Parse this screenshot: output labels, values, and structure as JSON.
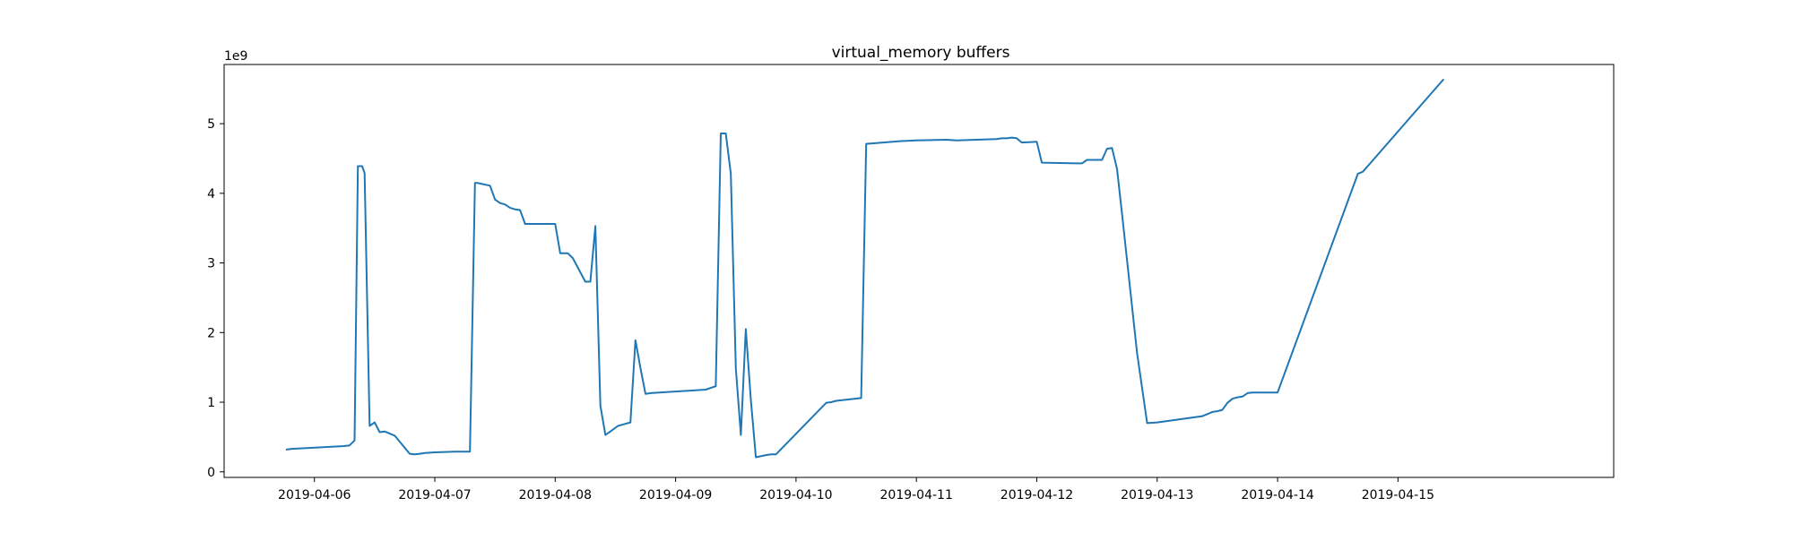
{
  "chart_data": {
    "type": "line",
    "title": "virtual_memory buffers",
    "xlabel": "",
    "ylabel": "",
    "y_offset_label": "1e9",
    "xlim": [
      "2019-04-05 06:00",
      "2019-04-16 19:00"
    ],
    "ylim": [
      -0.08,
      5.85
    ],
    "grid": false,
    "x_ticks": [
      "2019-04-06",
      "2019-04-07",
      "2019-04-08",
      "2019-04-09",
      "2019-04-10",
      "2019-04-11",
      "2019-04-12",
      "2019-04-13",
      "2019-04-14",
      "2019-04-15"
    ],
    "y_ticks": [
      0,
      1,
      2,
      3,
      4,
      5
    ],
    "series": [
      {
        "color": "#1f77b4",
        "x": [
          "2019-04-05 18:30",
          "2019-04-05 19:30",
          "2019-04-06 06:00",
          "2019-04-06 07:00",
          "2019-04-06 08:00",
          "2019-04-06 08:40",
          "2019-04-06 09:30",
          "2019-04-06 10:00",
          "2019-04-06 11:00",
          "2019-04-06 12:00",
          "2019-04-06 13:00",
          "2019-04-06 14:00",
          "2019-04-06 16:00",
          "2019-04-06 19:00",
          "2019-04-06 20:00",
          "2019-04-06 21:00",
          "2019-04-06 22:00",
          "2019-04-07 00:00",
          "2019-04-07 04:00",
          "2019-04-07 07:00",
          "2019-04-07 08:00",
          "2019-04-07 08:30",
          "2019-04-07 09:00",
          "2019-04-07 11:00",
          "2019-04-07 12:00",
          "2019-04-07 13:00",
          "2019-04-07 14:00",
          "2019-04-07 15:00",
          "2019-04-07 16:00",
          "2019-04-07 17:00",
          "2019-04-07 18:00",
          "2019-04-07 20:00",
          "2019-04-08 00:00",
          "2019-04-08 01:00",
          "2019-04-08 02:30",
          "2019-04-08 03:30",
          "2019-04-08 06:00",
          "2019-04-08 07:00",
          "2019-04-08 08:00",
          "2019-04-08 09:00",
          "2019-04-08 10:00",
          "2019-04-08 11:00",
          "2019-04-08 12:30",
          "2019-04-08 13:30",
          "2019-04-08 15:00",
          "2019-04-08 16:00",
          "2019-04-08 17:00",
          "2019-04-08 18:00",
          "2019-04-08 19:00",
          "2019-04-09 06:00",
          "2019-04-09 08:00",
          "2019-04-09 09:00",
          "2019-04-09 10:00",
          "2019-04-09 11:00",
          "2019-04-09 12:00",
          "2019-04-09 13:00",
          "2019-04-09 14:00",
          "2019-04-09 15:00",
          "2019-04-09 16:00",
          "2019-04-09 18:00",
          "2019-04-09 19:00",
          "2019-04-09 20:00",
          "2019-04-10 06:00",
          "2019-04-10 07:00",
          "2019-04-10 08:00",
          "2019-04-10 13:00",
          "2019-04-10 14:00",
          "2019-04-10 21:00",
          "2019-04-11 00:00",
          "2019-04-11 06:00",
          "2019-04-11 08:00",
          "2019-04-11 16:00",
          "2019-04-11 17:00",
          "2019-04-11 18:00",
          "2019-04-11 19:00",
          "2019-04-11 20:00",
          "2019-04-11 21:00",
          "2019-04-12 00:00",
          "2019-04-12 01:00",
          "2019-04-12 08:00",
          "2019-04-12 09:00",
          "2019-04-12 10:00",
          "2019-04-12 11:00",
          "2019-04-12 12:00",
          "2019-04-12 13:00",
          "2019-04-12 14:00",
          "2019-04-12 15:00",
          "2019-04-12 16:00",
          "2019-04-12 17:00",
          "2019-04-12 20:00",
          "2019-04-12 22:00",
          "2019-04-13 00:00",
          "2019-04-13 09:00",
          "2019-04-13 10:00",
          "2019-04-13 11:00",
          "2019-04-13 12:00",
          "2019-04-13 13:00",
          "2019-04-13 14:00",
          "2019-04-13 15:00",
          "2019-04-13 16:00",
          "2019-04-13 17:00",
          "2019-04-13 18:00",
          "2019-04-13 19:00",
          "2019-04-14 00:00",
          "2019-04-14 16:00",
          "2019-04-14 17:00",
          "2019-04-15 09:00"
        ],
        "values": [
          0.32,
          0.33,
          0.37,
          0.38,
          0.45,
          4.39,
          4.39,
          4.29,
          0.66,
          0.71,
          0.57,
          0.58,
          0.52,
          0.26,
          0.25,
          0.26,
          0.27,
          0.28,
          0.29,
          0.29,
          4.15,
          4.15,
          4.14,
          4.11,
          3.91,
          3.86,
          3.84,
          3.79,
          3.77,
          3.76,
          3.56,
          3.56,
          3.56,
          3.14,
          3.14,
          3.07,
          2.73,
          2.73,
          3.53,
          0.95,
          0.53,
          0.58,
          0.66,
          0.68,
          0.71,
          1.89,
          1.49,
          1.12,
          1.13,
          1.18,
          1.23,
          4.86,
          4.86,
          4.28,
          1.48,
          0.53,
          2.05,
          1.04,
          0.21,
          0.24,
          0.25,
          0.25,
          0.99,
          1.0,
          1.02,
          1.06,
          4.71,
          4.75,
          4.76,
          4.77,
          4.76,
          4.78,
          4.79,
          4.79,
          4.8,
          4.79,
          4.73,
          4.74,
          4.44,
          4.43,
          4.43,
          4.48,
          4.48,
          4.48,
          4.48,
          4.64,
          4.65,
          4.35,
          3.7,
          1.7,
          0.7,
          0.71,
          0.8,
          0.83,
          0.86,
          0.87,
          0.89,
          0.99,
          1.05,
          1.07,
          1.08,
          1.13,
          1.14,
          1.14,
          4.28,
          4.31,
          5.63
        ]
      }
    ]
  }
}
